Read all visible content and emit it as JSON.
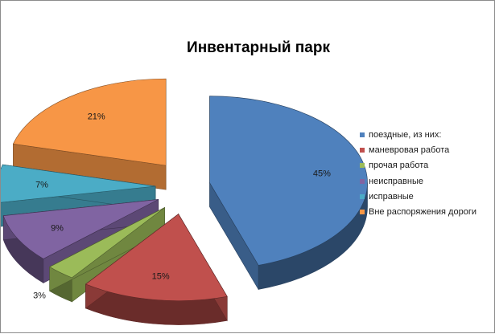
{
  "chart_data": {
    "type": "pie",
    "title": "Инвентарный парк",
    "three_d": true,
    "exploded": true,
    "legend_position": "right",
    "slices": [
      {
        "name": "поездные, из них:",
        "value": 45,
        "label": "45%",
        "color": "#4F81BD"
      },
      {
        "name": "маневровая работа",
        "value": 15,
        "label": "15%",
        "color": "#C0504D"
      },
      {
        "name": "прочая работа",
        "value": 3,
        "label": "3%",
        "color": "#9BBB59"
      },
      {
        "name": "неисправные",
        "value": 9,
        "label": "9%",
        "color": "#8064A2"
      },
      {
        "name": "исправные",
        "value": 7,
        "label": "7%",
        "color": "#4BACC6"
      },
      {
        "name": "Вне распоряжения дороги",
        "value": 21,
        "label": "21%",
        "color": "#F79646"
      }
    ]
  }
}
